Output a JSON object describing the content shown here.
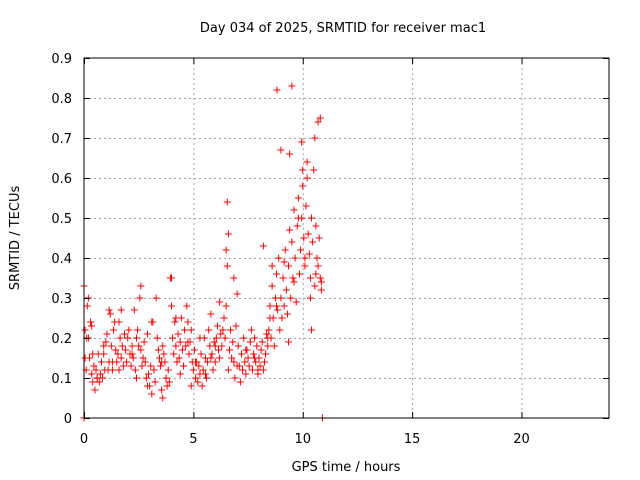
{
  "chart_data": {
    "type": "scatter",
    "title": "Day 034 of 2025, SRMTID for receiver mac1",
    "xlabel": "GPS time / hours",
    "ylabel": "SRMTID / TECUs",
    "xlim": [
      0,
      24
    ],
    "ylim": [
      0,
      0.9
    ],
    "xticks": [
      0,
      5,
      10,
      15,
      20
    ],
    "yticks": [
      0,
      0.1,
      0.2,
      0.3,
      0.4,
      0.5,
      0.6,
      0.7,
      0.8,
      0.9
    ],
    "xtick_labels": [
      "0",
      "5",
      "10",
      "15",
      "20"
    ],
    "ytick_labels": [
      "0",
      "0.1",
      "0.2",
      "0.3",
      "0.4",
      "0.5",
      "0.6",
      "0.7",
      "0.8",
      "0.9"
    ],
    "grid": true,
    "marker": "plus",
    "color": "#ff0000",
    "series": [
      {
        "name": "SRMTID",
        "x": [
          0.0,
          0.05,
          0.1,
          0.15,
          0.2,
          0.25,
          0.3,
          0.35,
          0.4,
          0.45,
          0.5,
          0.55,
          0.6,
          0.65,
          0.7,
          0.75,
          0.8,
          0.85,
          0.9,
          0.95,
          1.0,
          1.05,
          1.1,
          1.15,
          1.2,
          1.25,
          1.3,
          1.35,
          1.4,
          1.45,
          1.5,
          1.55,
          1.6,
          1.65,
          1.7,
          1.75,
          1.8,
          1.85,
          1.9,
          1.95,
          2.0,
          2.05,
          2.1,
          2.15,
          2.2,
          2.25,
          2.3,
          2.35,
          2.4,
          2.45,
          2.5,
          2.55,
          2.6,
          2.65,
          2.7,
          2.75,
          2.8,
          2.85,
          2.9,
          2.95,
          3.0,
          3.05,
          3.1,
          3.15,
          3.2,
          3.25,
          3.3,
          3.35,
          3.4,
          3.45,
          3.5,
          3.55,
          3.6,
          3.65,
          3.7,
          3.75,
          3.8,
          3.85,
          3.9,
          3.95,
          4.0,
          4.05,
          4.1,
          4.15,
          4.2,
          4.25,
          4.3,
          4.35,
          4.4,
          4.45,
          4.5,
          4.55,
          4.6,
          4.65,
          4.7,
          4.75,
          4.8,
          4.85,
          4.9,
          4.95,
          5.0,
          5.05,
          5.1,
          5.15,
          5.2,
          5.25,
          5.3,
          5.35,
          5.4,
          5.45,
          5.5,
          5.55,
          5.6,
          5.65,
          5.7,
          5.75,
          5.8,
          5.85,
          5.9,
          5.95,
          6.0,
          6.05,
          6.1,
          6.15,
          6.2,
          6.25,
          6.3,
          6.35,
          6.4,
          6.45,
          6.5,
          6.55,
          6.6,
          6.65,
          6.7,
          6.75,
          6.8,
          6.85,
          6.9,
          6.95,
          7.0,
          7.05,
          7.1,
          7.15,
          7.2,
          7.25,
          7.3,
          7.35,
          7.4,
          7.45,
          7.5,
          7.55,
          7.6,
          7.65,
          7.7,
          7.75,
          7.8,
          7.85,
          7.9,
          7.95,
          8.0,
          8.05,
          8.1,
          8.15,
          8.2,
          8.25,
          8.3,
          8.35,
          8.4,
          8.45,
          8.5,
          8.55,
          8.6,
          8.65,
          8.7,
          8.75,
          8.8,
          8.85,
          8.9,
          8.95,
          9.0,
          9.05,
          9.1,
          9.15,
          9.2,
          9.25,
          9.3,
          9.35,
          9.4,
          9.45,
          9.5,
          9.55,
          9.6,
          9.65,
          9.7,
          9.75,
          9.8,
          9.85,
          9.9,
          9.95,
          10.0,
          10.05,
          10.1,
          10.15,
          10.2,
          10.25,
          10.3,
          10.35,
          10.4,
          10.45,
          10.5,
          10.55,
          10.6,
          10.65,
          10.7,
          10.75,
          10.8,
          10.85,
          0.0,
          0.12,
          0.2,
          0.35,
          0.6,
          0.9,
          1.3,
          1.7,
          2.2,
          2.6,
          3.1,
          3.6,
          4.0,
          4.4,
          4.9,
          5.3,
          5.8,
          6.2,
          6.6,
          7.0,
          7.4,
          7.8,
          8.2,
          8.5,
          8.8,
          8.82,
          9.0,
          9.35,
          9.4,
          9.5,
          9.8,
          10.0,
          10.2,
          10.4,
          10.6,
          10.8,
          10.85,
          10.9,
          6.55,
          6.5,
          8.6,
          9.95,
          10.55,
          10.7,
          0.05,
          1.15,
          2.4,
          3.55,
          4.75,
          5.55,
          6.85,
          7.95,
          9.15,
          10.35,
          0.4,
          1.6,
          2.9,
          4.2,
          5.1,
          6.0,
          7.2,
          8.4,
          9.6,
          10.1
        ],
        "y": [
          0.33,
          0.15,
          0.12,
          0.28,
          0.2,
          0.15,
          0.24,
          0.11,
          0.09,
          0.13,
          0.07,
          0.12,
          0.1,
          0.16,
          0.09,
          0.11,
          0.14,
          0.1,
          0.16,
          0.12,
          0.19,
          0.21,
          0.12,
          0.14,
          0.26,
          0.18,
          0.12,
          0.22,
          0.24,
          0.17,
          0.14,
          0.16,
          0.12,
          0.2,
          0.15,
          0.18,
          0.13,
          0.21,
          0.17,
          0.14,
          0.2,
          0.22,
          0.16,
          0.13,
          0.18,
          0.15,
          0.27,
          0.12,
          0.2,
          0.22,
          0.18,
          0.3,
          0.17,
          0.13,
          0.15,
          0.19,
          0.14,
          0.1,
          0.21,
          0.11,
          0.08,
          0.13,
          0.06,
          0.24,
          0.12,
          0.09,
          0.3,
          0.2,
          0.17,
          0.15,
          0.13,
          0.07,
          0.18,
          0.16,
          0.14,
          0.1,
          0.08,
          0.12,
          0.09,
          0.35,
          0.28,
          0.2,
          0.16,
          0.24,
          0.18,
          0.14,
          0.21,
          0.15,
          0.19,
          0.25,
          0.17,
          0.13,
          0.22,
          0.18,
          0.28,
          0.24,
          0.16,
          0.19,
          0.22,
          0.14,
          0.12,
          0.17,
          0.1,
          0.14,
          0.09,
          0.13,
          0.11,
          0.16,
          0.08,
          0.12,
          0.2,
          0.15,
          0.1,
          0.14,
          0.22,
          0.18,
          0.26,
          0.16,
          0.12,
          0.19,
          0.14,
          0.2,
          0.23,
          0.17,
          0.15,
          0.21,
          0.18,
          0.22,
          0.25,
          0.2,
          0.28,
          0.38,
          0.12,
          0.17,
          0.22,
          0.15,
          0.19,
          0.14,
          0.1,
          0.23,
          0.31,
          0.18,
          0.13,
          0.09,
          0.16,
          0.12,
          0.2,
          0.14,
          0.11,
          0.17,
          0.15,
          0.13,
          0.19,
          0.22,
          0.12,
          0.16,
          0.2,
          0.14,
          0.18,
          0.11,
          0.15,
          0.13,
          0.17,
          0.19,
          0.12,
          0.14,
          0.16,
          0.21,
          0.18,
          0.22,
          0.28,
          0.2,
          0.33,
          0.25,
          0.18,
          0.3,
          0.36,
          0.27,
          0.4,
          0.22,
          0.3,
          0.25,
          0.35,
          0.28,
          0.42,
          0.32,
          0.26,
          0.38,
          0.47,
          0.3,
          0.44,
          0.35,
          0.52,
          0.4,
          0.29,
          0.48,
          0.55,
          0.36,
          0.42,
          0.5,
          0.58,
          0.45,
          0.38,
          0.53,
          0.6,
          0.46,
          0.41,
          0.35,
          0.5,
          0.44,
          0.62,
          0.33,
          0.48,
          0.4,
          0.38,
          0.45,
          0.35,
          0.32,
          0.0,
          0.2,
          0.3,
          0.23,
          0.1,
          0.18,
          0.14,
          0.27,
          0.16,
          0.33,
          0.24,
          0.05,
          0.35,
          0.11,
          0.08,
          0.2,
          0.15,
          0.29,
          0.46,
          0.13,
          0.17,
          0.15,
          0.43,
          0.25,
          0.28,
          0.82,
          0.67,
          0.19,
          0.66,
          0.83,
          0.5,
          0.62,
          0.64,
          0.22,
          0.36,
          0.75,
          0.34,
          0.0,
          0.54,
          0.42,
          0.38,
          0.69,
          0.7,
          0.74,
          0.22,
          0.27,
          0.1,
          0.14,
          0.19,
          0.11,
          0.35,
          0.12,
          0.39,
          0.3,
          0.16,
          0.24,
          0.08,
          0.25,
          0.14,
          0.18,
          0.16,
          0.2,
          0.34,
          0.4
        ]
      }
    ]
  }
}
